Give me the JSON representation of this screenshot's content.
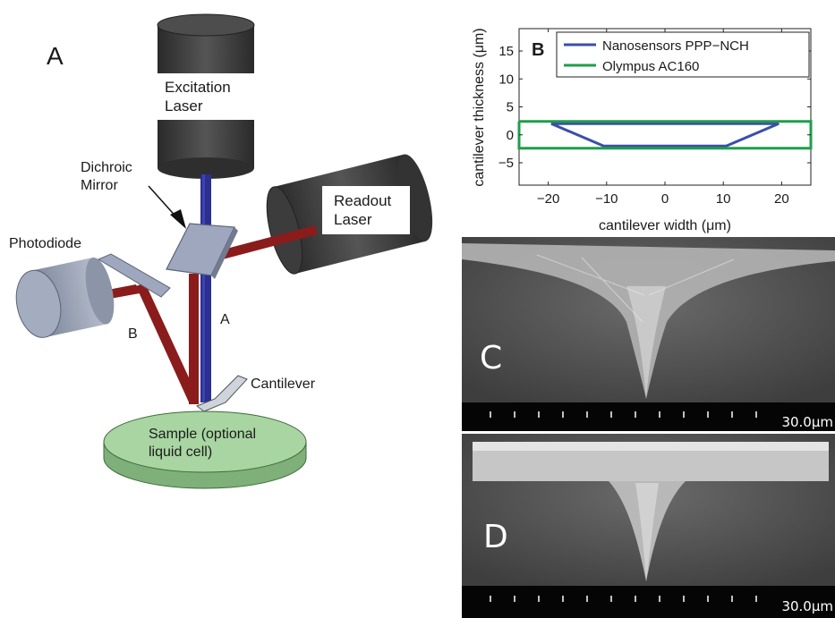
{
  "diagram": {
    "panel_letter": "A",
    "labels": {
      "excitation_laser_1": "Excitation",
      "excitation_laser_2": "Laser",
      "readout_laser_1": "Readout",
      "readout_laser_2": "Laser",
      "dichroic_1": "Dichroic",
      "dichroic_2": "Mirror",
      "photodiode": "Photodiode",
      "beam_a": "A",
      "beam_b": "B",
      "cantilever": "Cantilever",
      "sample_1": "Sample (optional",
      "sample_2": "liquid cell)"
    },
    "colors": {
      "laser_body": "#3b3b3b",
      "blue_beam": "#2b2f8f",
      "red_beam": "#8a1c1c",
      "mirror": "#9ea7bd",
      "sample": "#a8d5a2"
    }
  },
  "chart_data": {
    "type": "line",
    "panel_letter": "B",
    "xlabel": "cantilever width (μm)",
    "ylabel": "cantilever thickness (μm)",
    "xlim": [
      -25,
      25
    ],
    "ylim": [
      -9,
      19
    ],
    "xticks": [
      -20,
      -10,
      0,
      10,
      20
    ],
    "yticks": [
      -5,
      0,
      5,
      10,
      15
    ],
    "grid": false,
    "legend_position": "top-right",
    "series": [
      {
        "name": "Nanosensors PPP−NCH",
        "color": "#3a4fa8",
        "x": [
          -19.5,
          19.5,
          10.5,
          -10.5,
          -19.5
        ],
        "y": [
          2,
          2,
          -2,
          -2,
          2
        ]
      },
      {
        "name": "Olympus AC160",
        "color": "#1f9e4a",
        "x": [
          -25,
          25,
          25,
          -25,
          -25
        ],
        "y": [
          2.4,
          2.4,
          -2.4,
          -2.4,
          2.4
        ]
      }
    ]
  },
  "sem": {
    "image_c_letter": "C",
    "image_d_letter": "D",
    "scale_c": "30.0μm",
    "scale_d": "30.0μm"
  }
}
